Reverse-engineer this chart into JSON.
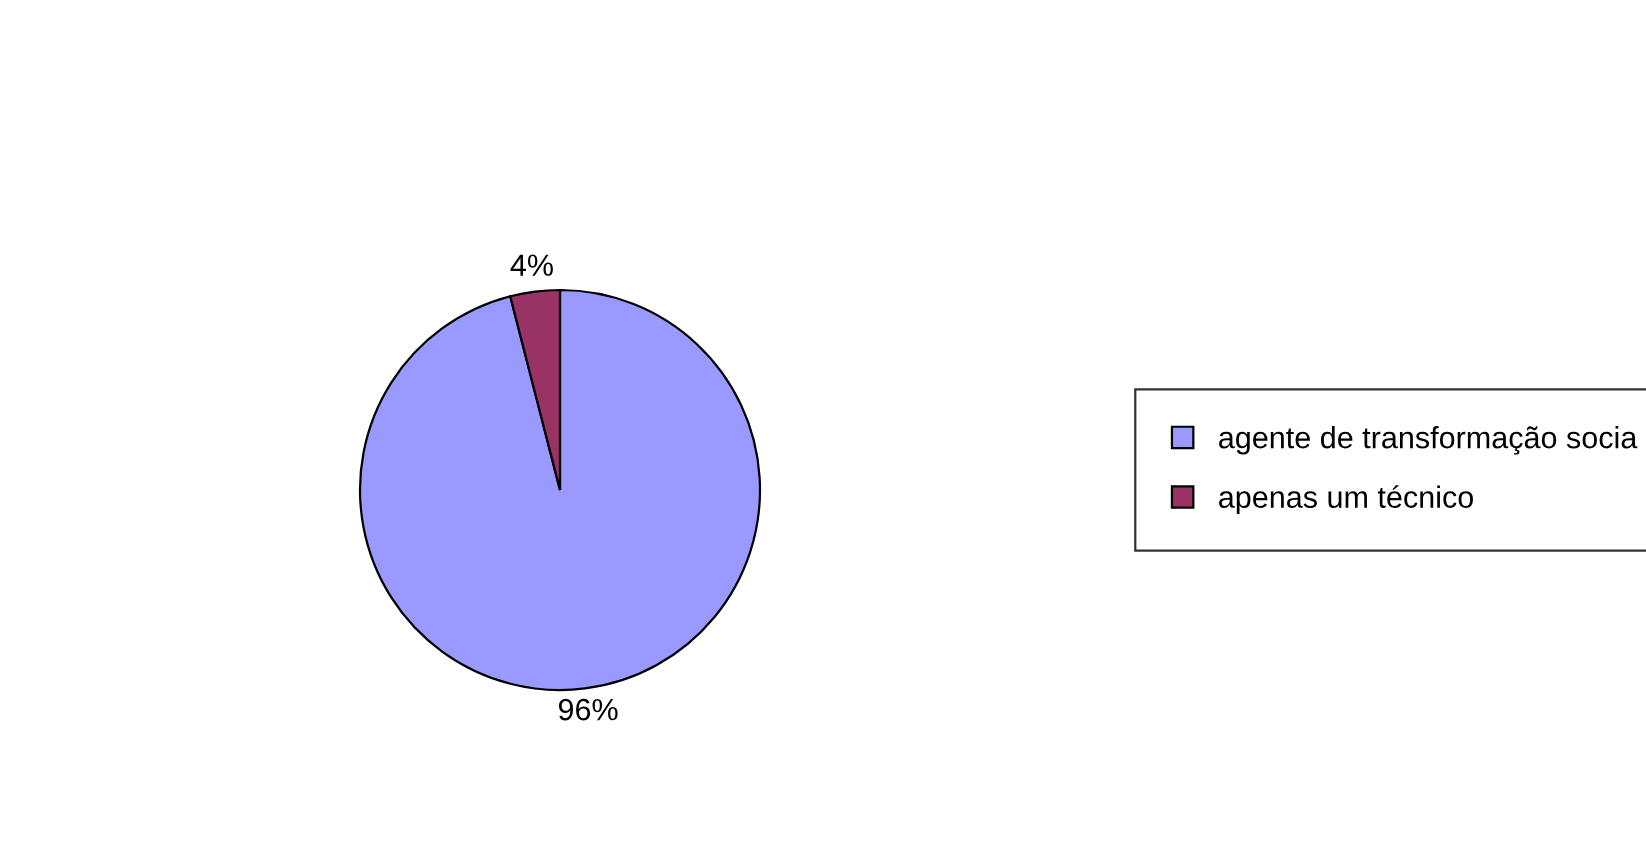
{
  "chart_data": {
    "type": "pie",
    "categories": [
      "agente de transformação socia",
      "apenas um técnico"
    ],
    "values": [
      96,
      4
    ],
    "colors": [
      "#9999ff",
      "#993366"
    ],
    "value_labels": [
      "96%",
      "4%"
    ],
    "legend": "right"
  }
}
